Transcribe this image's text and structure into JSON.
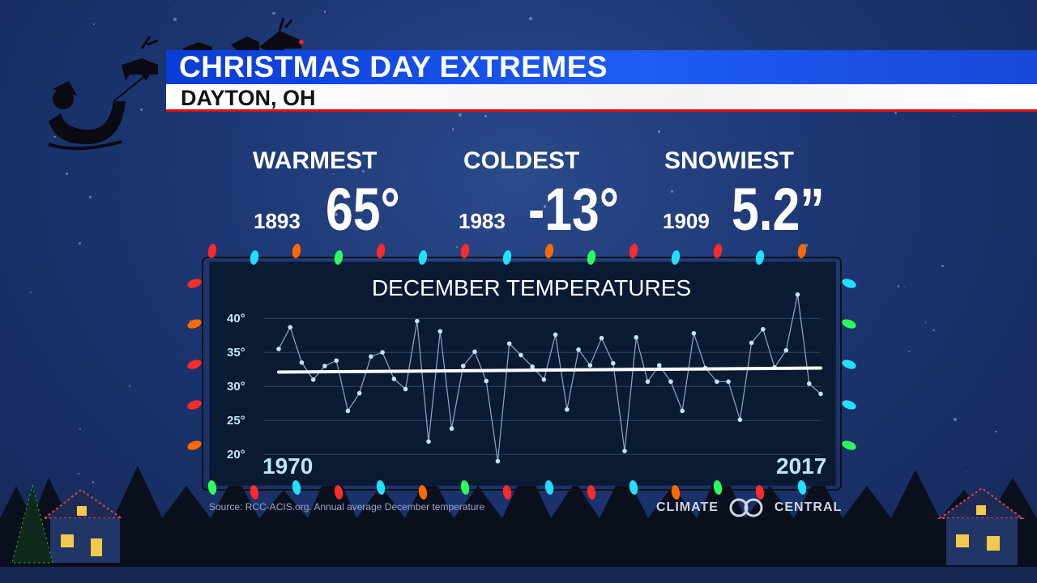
{
  "header": {
    "title": "CHRISTMAS DAY EXTREMES",
    "subtitle": "DAYTON, OH"
  },
  "stats": [
    {
      "label": "WARMEST",
      "year": "1893",
      "value": "65°"
    },
    {
      "label": "COLDEST",
      "year": "1983",
      "value": "-13°"
    },
    {
      "label": "SNOWIEST",
      "year": "1909",
      "value": "5.2”"
    }
  ],
  "source": "Source: RCC-ACIS.org. Annual average December temperature",
  "logo": {
    "left": "CLIMATE",
    "right": "CENTRAL"
  },
  "colors": {
    "title_bar": "#1f5cf2",
    "panel": "#0b1a33",
    "series": "#bfe6f5",
    "trend": "#ffffff",
    "accent": "#d11111"
  },
  "chart_data": {
    "type": "line",
    "title": "DECEMBER TEMPERATURES",
    "xlabel": "",
    "ylabel": "",
    "x_start_label": "1970",
    "x_end_label": "2017",
    "xlim": [
      1970,
      2017
    ],
    "ylim": [
      18,
      43
    ],
    "yticks": [
      20,
      25,
      30,
      35,
      40
    ],
    "ytick_labels": [
      "20°",
      "25°",
      "30°",
      "35°",
      "40°"
    ],
    "grid": true,
    "series": [
      {
        "x": [
          1970,
          1971,
          1972,
          1973,
          1974,
          1975,
          1976,
          1977,
          1978,
          1979,
          1980,
          1981,
          1982,
          1983,
          1984,
          1985,
          1986,
          1987,
          1988,
          1989,
          1990,
          1991,
          1992,
          1993,
          1994,
          1995,
          1996,
          1997,
          1998,
          1999,
          2000,
          2001,
          2002,
          2003,
          2004,
          2005,
          2006,
          2007,
          2008,
          2009,
          2010,
          2011,
          2012,
          2013,
          2014,
          2015,
          2016,
          2017
        ],
        "values": [
          35.5,
          38.7,
          33.5,
          31.0,
          33.0,
          33.8,
          26.4,
          29.0,
          34.4,
          35.0,
          31.1,
          29.6,
          39.6,
          21.9,
          38.1,
          23.8,
          33.0,
          35.1,
          30.8,
          19.0,
          36.3,
          34.6,
          32.9,
          31.0,
          37.6,
          26.6,
          35.4,
          33.1,
          37.1,
          33.4,
          20.5,
          37.2,
          30.7,
          33.1,
          30.7,
          26.4,
          37.8,
          32.7,
          30.7,
          30.7,
          25.1,
          36.4,
          38.4,
          32.8,
          35.3,
          43.5,
          30.4,
          28.9
        ]
      },
      {
        "name": "trend",
        "x": [
          1970,
          2017
        ],
        "values": [
          32.1,
          32.7
        ]
      }
    ]
  }
}
